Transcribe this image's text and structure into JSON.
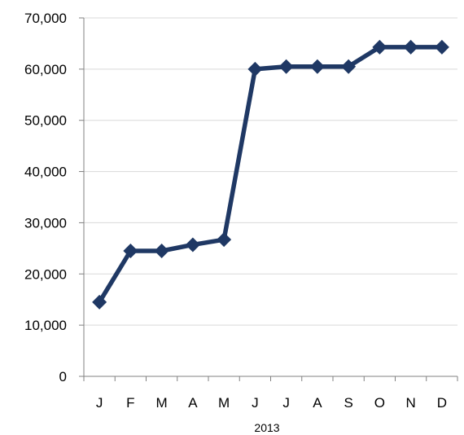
{
  "chart_data": {
    "type": "line",
    "title": "",
    "xlabel": "2013",
    "ylabel": "",
    "categories": [
      "J",
      "F",
      "M",
      "A",
      "M",
      "J",
      "J",
      "A",
      "S",
      "O",
      "N",
      "D"
    ],
    "series": [
      {
        "values": [
          14500,
          24500,
          24500,
          25700,
          26700,
          60000,
          60500,
          60500,
          60500,
          64300,
          64300,
          64300
        ]
      }
    ],
    "ylim": [
      0,
      70000
    ],
    "yticks": [
      0,
      10000,
      20000,
      30000,
      40000,
      50000,
      60000,
      70000
    ],
    "ytick_labels": [
      "0",
      "10,000",
      "20,000",
      "30,000",
      "40,000",
      "50,000",
      "60,000",
      "70,000"
    ],
    "grid": true,
    "legend": "none",
    "colors": {
      "series": "#1f3864",
      "grid": "#d9d9d9",
      "axis": "#808080"
    }
  }
}
